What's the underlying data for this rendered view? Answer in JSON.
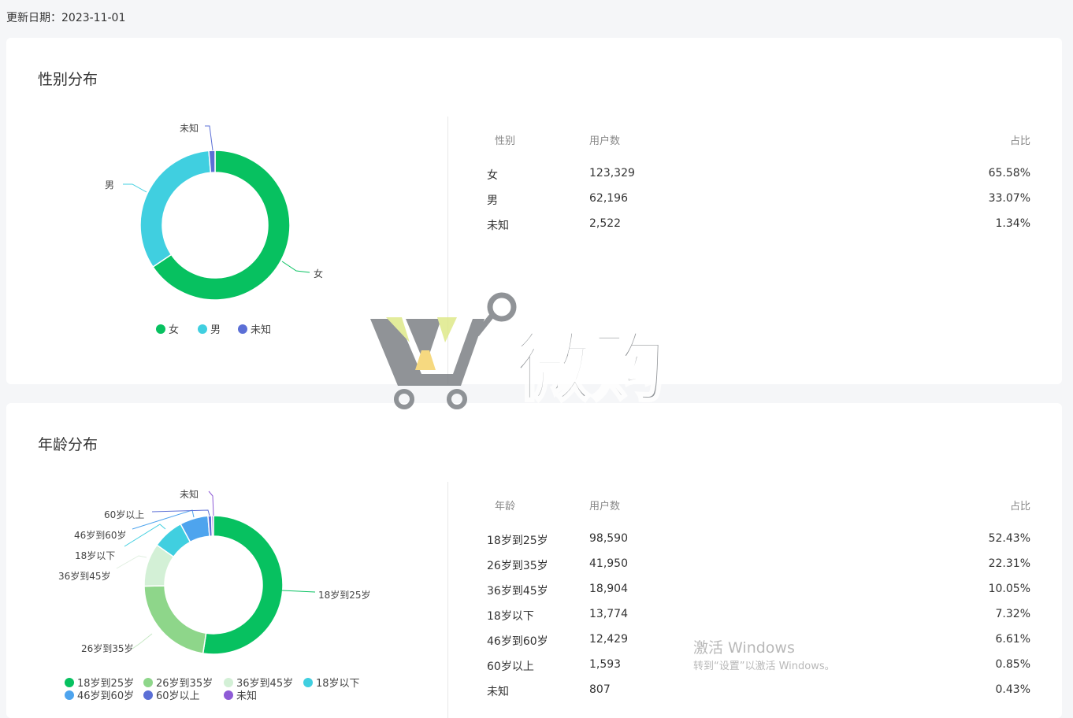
{
  "update": {
    "label": "更新日期：",
    "date": "2023-11-01"
  },
  "gender": {
    "title": "性别分布",
    "headers": [
      "性别",
      "用户数",
      "占比"
    ],
    "rows": [
      [
        "女",
        "123,329",
        "65.58%"
      ],
      [
        "男",
        "62,196",
        "33.07%"
      ],
      [
        "未知",
        "2,522",
        "1.34%"
      ]
    ],
    "chart_data": {
      "type": "pie",
      "donut": true,
      "categories": [
        "女",
        "男",
        "未知"
      ],
      "values": [
        123329,
        62196,
        2522
      ],
      "colors": [
        "#07c160",
        "#40cfe0",
        "#5b6fd6"
      ],
      "legend": "bottom"
    }
  },
  "age": {
    "title": "年龄分布",
    "headers": [
      "年龄",
      "用户数",
      "占比"
    ],
    "rows": [
      [
        "18岁到25岁",
        "98,590",
        "52.43%"
      ],
      [
        "26岁到35岁",
        "41,950",
        "22.31%"
      ],
      [
        "36岁到45岁",
        "18,904",
        "10.05%"
      ],
      [
        "18岁以下",
        "13,774",
        "7.32%"
      ],
      [
        "46岁到60岁",
        "12,429",
        "6.61%"
      ],
      [
        "60岁以上",
        "1,593",
        "0.85%"
      ],
      [
        "未知",
        "807",
        "0.43%"
      ]
    ],
    "chart_data": {
      "type": "pie",
      "donut": true,
      "categories": [
        "18岁到25岁",
        "26岁到35岁",
        "36岁到45岁",
        "18岁以下",
        "46岁到60岁",
        "60岁以上",
        "未知"
      ],
      "values": [
        98590,
        41950,
        18904,
        13774,
        12429,
        1593,
        807
      ],
      "colors": [
        "#07c160",
        "#8ed68a",
        "#d3f0d6",
        "#40cfe0",
        "#4ea4ee",
        "#5b6fd6",
        "#8e5bd6"
      ],
      "legend": "bottom"
    }
  },
  "watermark": {
    "logo_text": "微购",
    "win_line1": "激活 Windows",
    "win_line2": "转到“设置”以激活 Windows。"
  }
}
